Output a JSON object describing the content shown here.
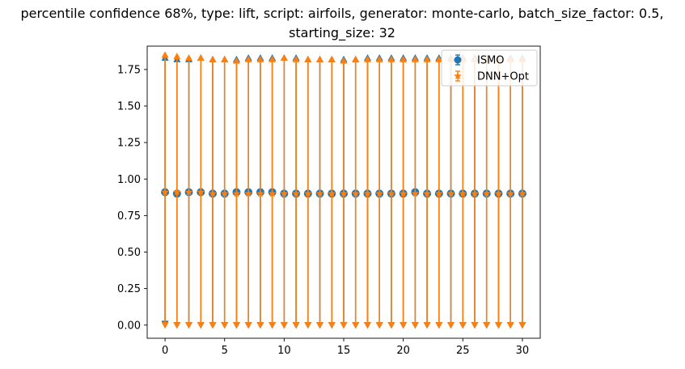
{
  "chart_data": {
    "type": "scatter",
    "title_line1": "percentile confidence 68%, type: lift, script: airfoils, generator: monte-carlo, batch_size_factor: 0.5,",
    "title_line2": "starting_size: 32",
    "xlabel": "",
    "ylabel": "",
    "xlim": [
      -1.5,
      31.5
    ],
    "ylim": [
      -0.09,
      1.91
    ],
    "x_ticks": [
      0,
      5,
      10,
      15,
      20,
      25,
      30
    ],
    "y_ticks": [
      0.0,
      0.25,
      0.5,
      0.75,
      1.0,
      1.25,
      1.5,
      1.75
    ],
    "y_tick_labels": [
      "0.00",
      "0.25",
      "0.50",
      "0.75",
      "1.00",
      "1.25",
      "1.50",
      "1.75"
    ],
    "legend_position": "top-right",
    "x": [
      0,
      1,
      2,
      3,
      4,
      5,
      6,
      7,
      8,
      9,
      10,
      11,
      12,
      13,
      14,
      15,
      16,
      17,
      18,
      19,
      20,
      21,
      22,
      23,
      24,
      25,
      26,
      27,
      28,
      29,
      30
    ],
    "series": [
      {
        "name": "ISMO",
        "color": "#1f77b4",
        "marker": "circle",
        "values": [
          0.91,
          0.9,
          0.91,
          0.91,
          0.9,
          0.9,
          0.91,
          0.91,
          0.91,
          0.91,
          0.9,
          0.9,
          0.9,
          0.9,
          0.9,
          0.9,
          0.9,
          0.9,
          0.9,
          0.9,
          0.9,
          0.91,
          0.9,
          0.9,
          0.9,
          0.9,
          0.9,
          0.9,
          0.9,
          0.9,
          0.9
        ],
        "upper": [
          1.83,
          1.82,
          1.82,
          1.83,
          1.82,
          1.82,
          1.82,
          1.83,
          1.83,
          1.83,
          1.83,
          1.83,
          1.82,
          1.82,
          1.82,
          1.82,
          1.82,
          1.83,
          1.83,
          1.83,
          1.83,
          1.83,
          1.83,
          1.83,
          1.83,
          1.83,
          1.83,
          1.83,
          1.83,
          1.83,
          1.83
        ],
        "lower": [
          0.01,
          0.0,
          0.0,
          0.0,
          0.0,
          0.0,
          0.0,
          0.0,
          0.0,
          0.0,
          0.0,
          0.0,
          0.0,
          0.0,
          0.0,
          0.0,
          0.0,
          0.0,
          0.0,
          0.0,
          0.0,
          0.0,
          0.0,
          0.0,
          0.0,
          0.0,
          0.0,
          0.0,
          0.0,
          0.0,
          0.0
        ]
      },
      {
        "name": "DNN+Opt",
        "color": "#ff7f0e",
        "marker": "star",
        "values": [
          0.91,
          0.91,
          0.91,
          0.91,
          0.9,
          0.9,
          0.9,
          0.9,
          0.9,
          0.9,
          0.9,
          0.9,
          0.9,
          0.9,
          0.9,
          0.9,
          0.9,
          0.9,
          0.9,
          0.9,
          0.9,
          0.9,
          0.9,
          0.9,
          0.9,
          0.9,
          0.9,
          0.9,
          0.9,
          0.9,
          0.9
        ],
        "upper": [
          1.85,
          1.84,
          1.83,
          1.83,
          1.82,
          1.82,
          1.81,
          1.82,
          1.82,
          1.82,
          1.83,
          1.82,
          1.82,
          1.82,
          1.82,
          1.81,
          1.82,
          1.82,
          1.82,
          1.82,
          1.82,
          1.82,
          1.82,
          1.82,
          1.82,
          1.82,
          1.82,
          1.82,
          1.82,
          1.82,
          1.82
        ],
        "lower": [
          0.0,
          0.0,
          0.0,
          0.0,
          0.0,
          0.0,
          0.0,
          0.0,
          0.0,
          0.0,
          0.0,
          0.0,
          0.0,
          0.0,
          0.0,
          0.0,
          0.0,
          0.0,
          0.0,
          0.0,
          0.0,
          0.0,
          0.0,
          0.0,
          0.0,
          0.0,
          0.0,
          0.0,
          0.0,
          0.0,
          0.0
        ]
      }
    ]
  }
}
